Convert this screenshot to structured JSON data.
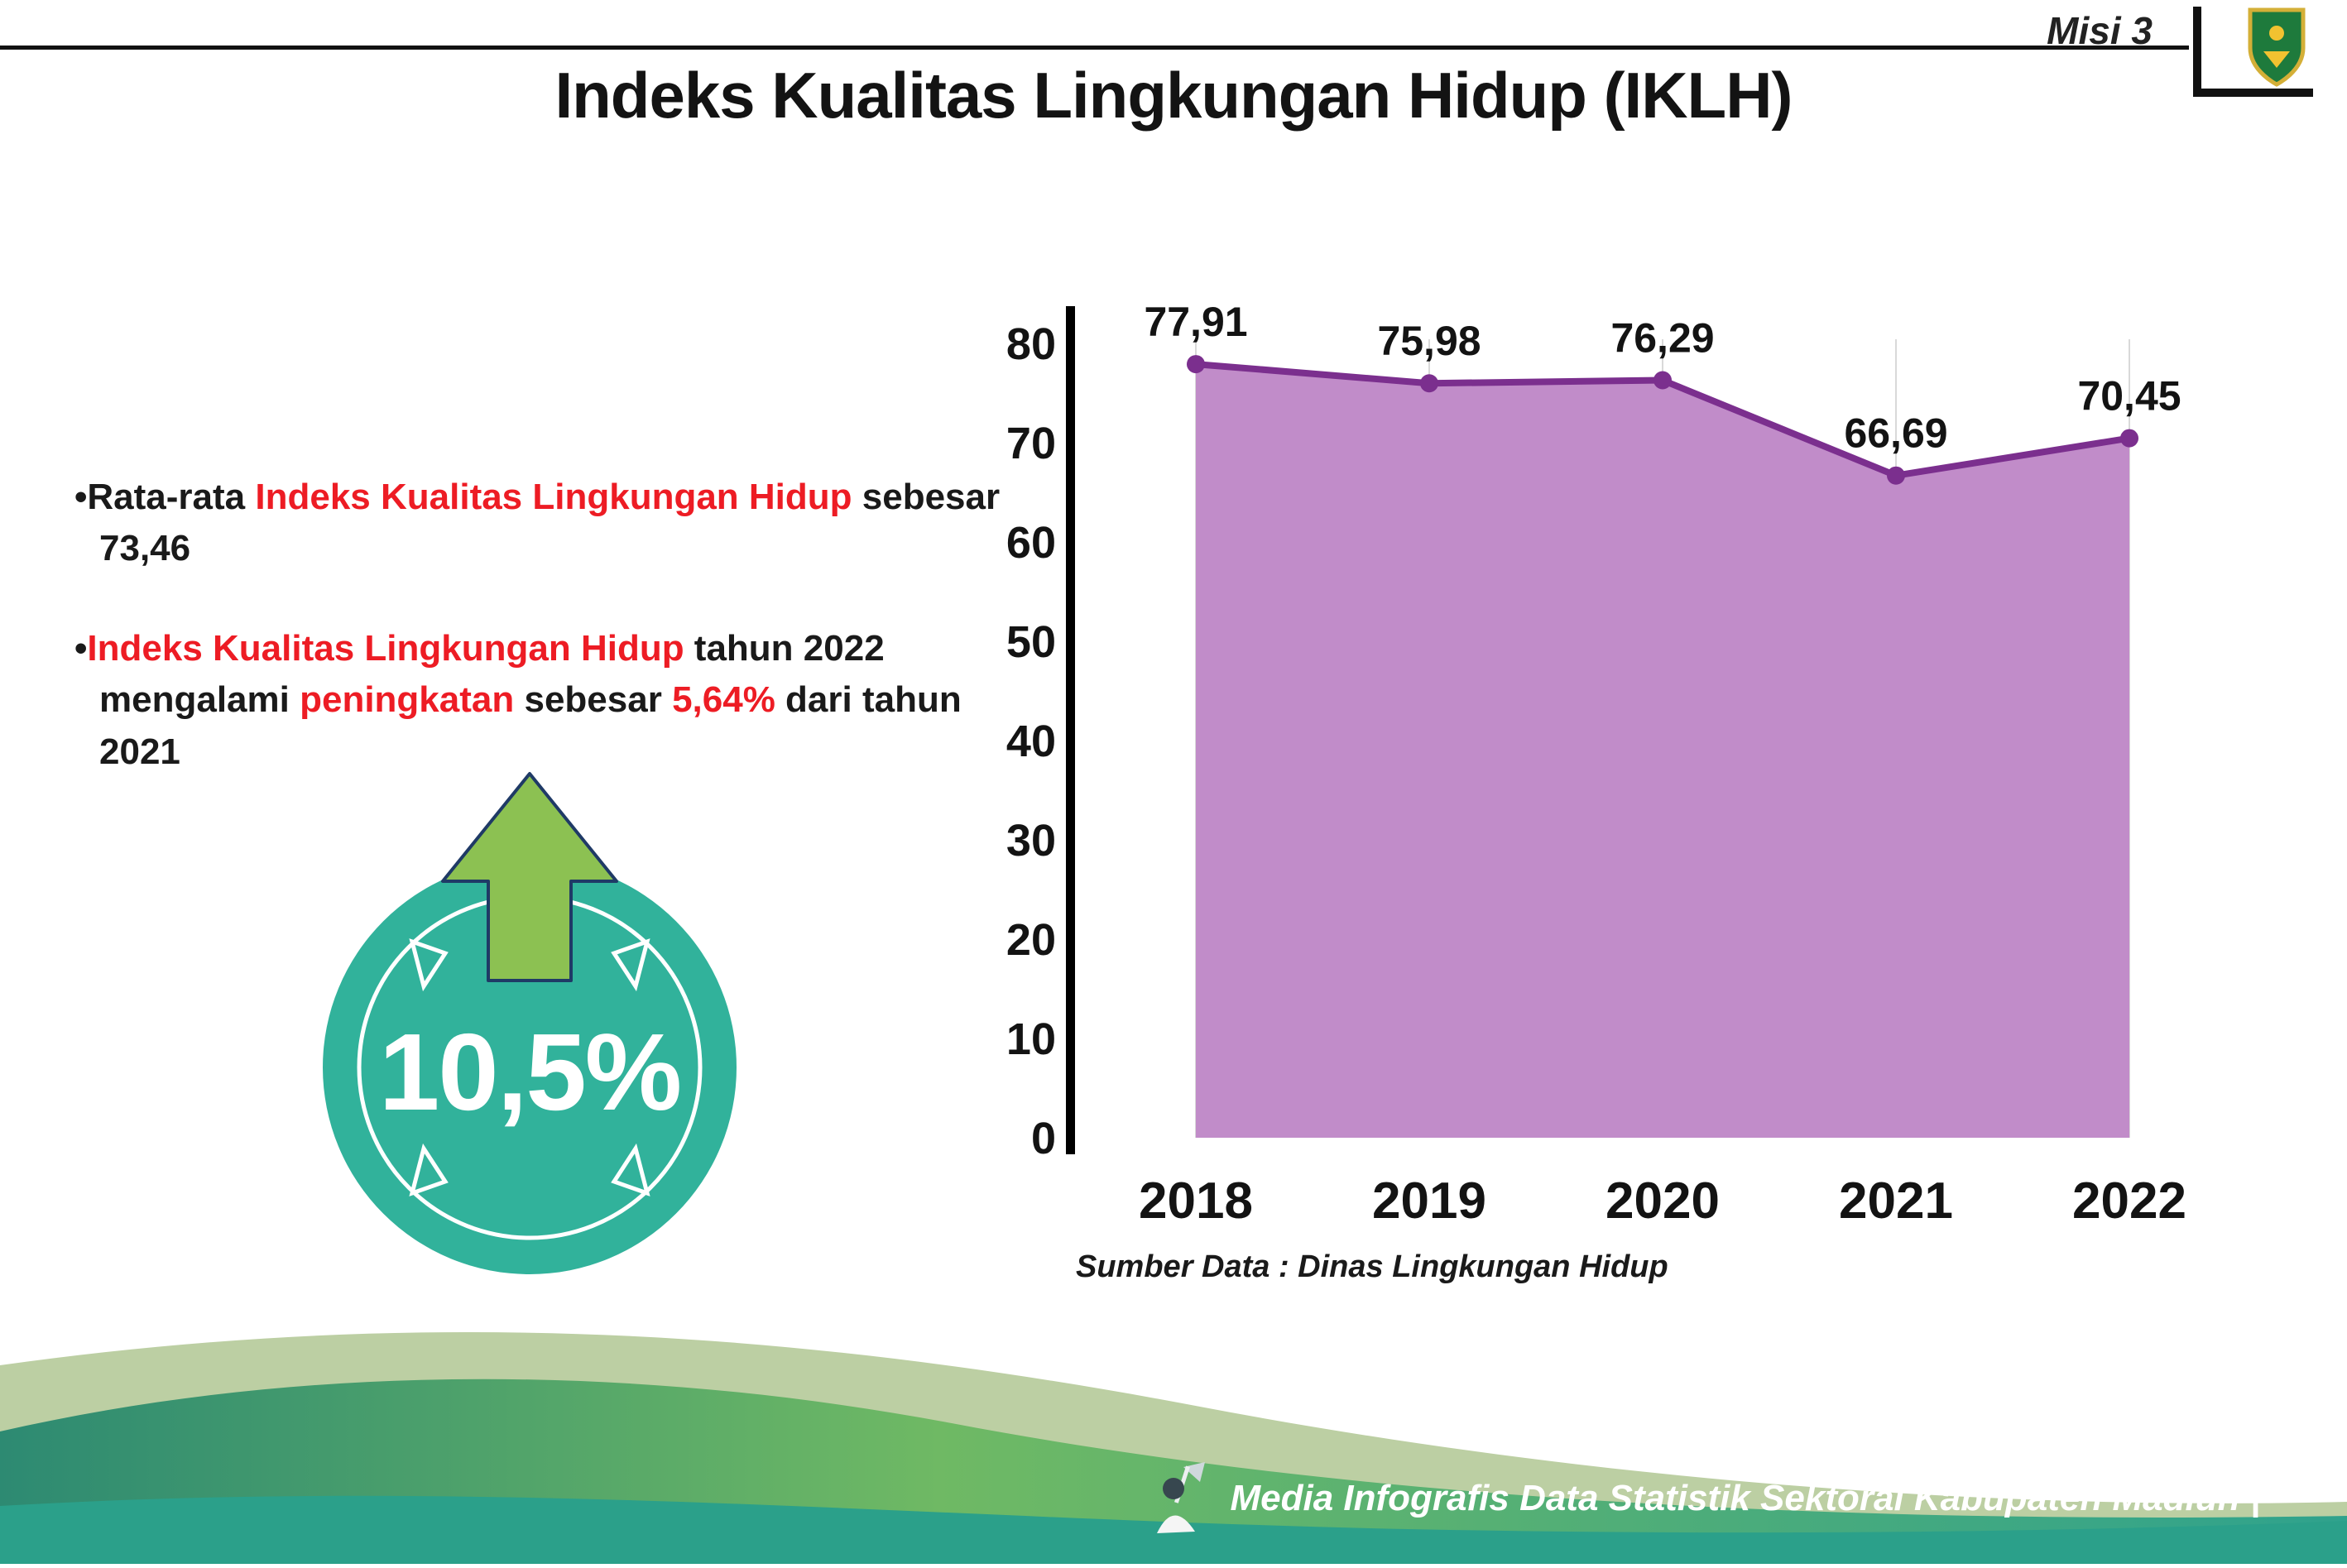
{
  "page": {
    "misi_label": "Misi 3",
    "title": "Indeks Kualitas Lingkungan Hidup (IKLH)"
  },
  "bullets": [
    {
      "segments": [
        {
          "text": "•",
          "red": false
        },
        {
          "text": "Rata-rata ",
          "red": false
        },
        {
          "text": "Indeks Kualitas Lingkungan Hidup",
          "red": true
        },
        {
          "text": " sebesar 73,46",
          "red": false
        }
      ]
    },
    {
      "segments": [
        {
          "text": "•",
          "red": false
        },
        {
          "text": "Indeks Kualitas Lingkungan Hidup",
          "red": true
        },
        {
          "text": " tahun 2022 mengalami ",
          "red": false
        },
        {
          "text": "peningkatan",
          "red": true
        },
        {
          "text": " sebesar ",
          "red": false
        },
        {
          "text": "5,64%",
          "red": true
        },
        {
          "text": " dari tahun 2021",
          "red": false
        }
      ]
    }
  ],
  "badge": {
    "value": "10,5%",
    "circle_color": "#31b29b",
    "arrow_color": "#8cc152"
  },
  "chart_data": {
    "type": "area",
    "title": "Indeks Kualitas Lingkungan Hidup (IKLH)",
    "categories": [
      "2018",
      "2019",
      "2020",
      "2021",
      "2022"
    ],
    "values": [
      77.91,
      75.98,
      76.29,
      66.69,
      70.45
    ],
    "value_labels": [
      "77,91",
      "75,98",
      "76,29",
      "66,69",
      "70,45"
    ],
    "xlabel": "",
    "ylabel": "",
    "ylim": [
      0,
      80
    ],
    "yticks": [
      0,
      10,
      20,
      30,
      40,
      50,
      60,
      70,
      80
    ],
    "grid": "vertical",
    "legend": "none",
    "source": "Sumber Data : Dinas Lingkungan Hidup",
    "colors": {
      "line": "#7b2f8e",
      "fill": "#c18cc9",
      "marker": "#7b2f8e",
      "grid": "#d9d9d9",
      "axis": "#000000"
    }
  },
  "footer": {
    "text": "Media Infografis Data Statistik Sektoral Kabupaten Madiun |"
  }
}
